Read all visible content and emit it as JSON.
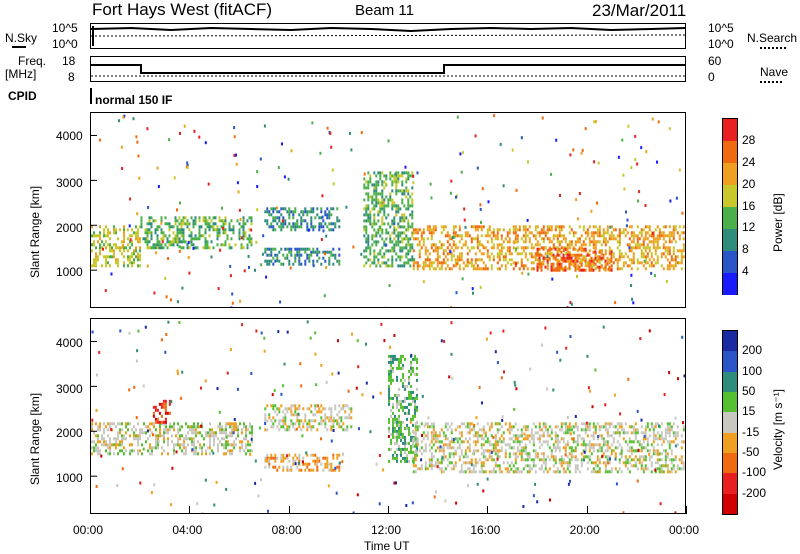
{
  "header": {
    "station": "Fort Hays West (fitACF)",
    "beam": "Beam 11",
    "date": "23/Mar/2011"
  },
  "top_panels": {
    "nsky_label": "N.Sky",
    "nsky_ticks": [
      "10^5",
      "10^0"
    ],
    "nsearch_label": "N.Search",
    "nsearch_ticks": [
      "10^5",
      "10^0"
    ],
    "freq_label": "Freq.",
    "freq_unit": "[MHz]",
    "freq_ticks": [
      "18",
      "8"
    ],
    "nave_label": "Nave",
    "nave_ticks": [
      "60",
      "0"
    ],
    "cpid_label": "CPID",
    "cpid_value": "normal 150 IF"
  },
  "chart_data": [
    {
      "type": "heatmap",
      "name": "power",
      "ylabel": "Slant Range [km]",
      "yticks": [
        1000,
        2000,
        3000,
        4000
      ],
      "ylim": [
        180,
        4500
      ],
      "xlim": [
        0,
        24
      ],
      "colorbar": {
        "label": "Power [dB]",
        "ticks": [
          "4",
          "8",
          "12",
          "16",
          "20",
          "24",
          "28"
        ],
        "colors": [
          "#1a1aff",
          "#2a55c8",
          "#2e8c7a",
          "#4cb04a",
          "#c8c82a",
          "#f0a020",
          "#f06a10",
          "#e82020"
        ]
      },
      "bands": [
        {
          "t0": 0.0,
          "t1": 2.0,
          "r0": 1100,
          "r1": 2000,
          "level": 4
        },
        {
          "t0": 2.0,
          "t1": 6.5,
          "r0": 1500,
          "r1": 2200,
          "level": 3
        },
        {
          "t0": 7.0,
          "t1": 10.0,
          "r0": 1100,
          "r1": 1500,
          "level": 2
        },
        {
          "t0": 7.0,
          "t1": 10.0,
          "r0": 1900,
          "r1": 2400,
          "level": 2
        },
        {
          "t0": 11.0,
          "t1": 13.0,
          "r0": 1100,
          "r1": 3200,
          "level": 3
        },
        {
          "t0": 13.0,
          "t1": 24.0,
          "r0": 1000,
          "r1": 2000,
          "level": 5
        },
        {
          "t0": 18.0,
          "t1": 21.0,
          "r0": 1000,
          "r1": 1500,
          "level": 6
        }
      ]
    },
    {
      "type": "heatmap",
      "name": "velocity",
      "ylabel": "Slant Range [km]",
      "yticks": [
        1000,
        2000,
        3000,
        4000
      ],
      "ylim": [
        180,
        4500
      ],
      "xlim": [
        0,
        24
      ],
      "xticks": [
        "00:00",
        "04:00",
        "08:00",
        "12:00",
        "16:00",
        "20:00",
        "00:00"
      ],
      "xlabel": "Time UT",
      "colorbar": {
        "label": "Velocity [m s⁻¹]",
        "ticks": [
          "200",
          "100",
          "50",
          "15",
          "-15",
          "-50",
          "-100",
          "-200"
        ],
        "colors": [
          "#1a2aa0",
          "#2a55c8",
          "#2e8c7a",
          "#55c030",
          "#c8c8c0",
          "#f0a020",
          "#f06a10",
          "#e82020",
          "#d00000"
        ]
      },
      "bands": [
        {
          "t0": 0.0,
          "t1": 6.5,
          "r0": 1500,
          "r1": 2200,
          "level": 4
        },
        {
          "t0": 7.0,
          "t1": 10.0,
          "r0": 1100,
          "r1": 1500,
          "level": 5
        },
        {
          "t0": 2.5,
          "t1": 3.2,
          "r0": 2200,
          "r1": 2700,
          "level": 7
        },
        {
          "t0": 7.0,
          "t1": 10.5,
          "r0": 2000,
          "r1": 2600,
          "level": 4
        },
        {
          "t0": 12.0,
          "t1": 13.2,
          "r0": 1300,
          "r1": 3700,
          "level": 3
        },
        {
          "t0": 13.0,
          "t1": 24.0,
          "r0": 1100,
          "r1": 2200,
          "level": 4
        }
      ]
    }
  ]
}
